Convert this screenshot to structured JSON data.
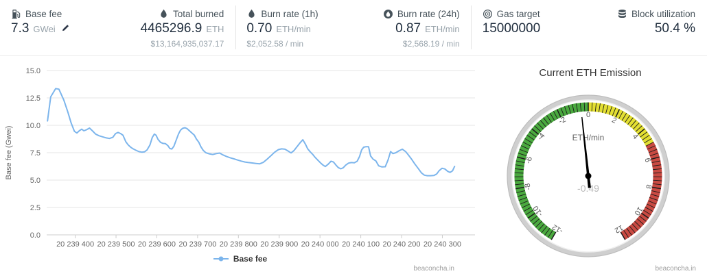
{
  "watermark": "beaconcha.in",
  "stats_bar": {
    "stats": [
      {
        "label": "Base fee",
        "value": "7.3",
        "unit": "GWei"
      },
      {
        "label": "Total burned",
        "value": "4465296.9",
        "unit": "ETH",
        "sub": "$13,164,935,037.17"
      },
      {
        "label": "Burn rate (1h)",
        "value": "0.70",
        "unit": "ETH/min",
        "sub": "$2,052.58 / min"
      },
      {
        "label": "Burn rate (24h)",
        "value": "0.87",
        "unit": "ETH/min",
        "sub": "$2,568.19 / min"
      },
      {
        "label": "Gas target",
        "value": "15000000"
      },
      {
        "label": "Block utilization",
        "value": "50.4 %"
      }
    ]
  },
  "chart_data": [
    {
      "type": "line",
      "title": "",
      "xlabel": "",
      "ylabel": "Base fee (Gwei)",
      "ylim": [
        0,
        15
      ],
      "yticks": [
        0,
        2.5,
        5,
        7.5,
        10,
        12.5,
        15
      ],
      "xlim": [
        20239330,
        20240380
      ],
      "xticks": [
        20239400,
        20239500,
        20239600,
        20239700,
        20239800,
        20239900,
        20240000,
        20240100,
        20240200,
        20240300
      ],
      "xtick_labels": [
        "20 239 400",
        "20 239 500",
        "20 239 600",
        "20 239 700",
        "20 239 800",
        "20 239 900",
        "20 240 000",
        "20 240 100",
        "20 240 200",
        "20 240 300"
      ],
      "grid": "horizontal",
      "legend_position": "bottom",
      "series": [
        {
          "name": "Base fee",
          "color": "#7cb5ec",
          "x": [
            20239332,
            20239340,
            20239352,
            20239360,
            20239372,
            20239382,
            20239390,
            20239398,
            20239404,
            20239410,
            20239416,
            20239421,
            20239428,
            20239435,
            20239442,
            20239450,
            20239458,
            20239467,
            20239476,
            20239484,
            20239492,
            20239499,
            20239505,
            20239511,
            20239517,
            20239524,
            20239530,
            20239536,
            20239542,
            20239549,
            20239556,
            20239563,
            20239570,
            20239576,
            20239583,
            20239589,
            20239594,
            20239598,
            20239603,
            20239609,
            20239615,
            20239621,
            20239627,
            20239632,
            20239637,
            20239642,
            20239648,
            20239653,
            20239658,
            20239663,
            20239669,
            20239674,
            20239680,
            20239686,
            20239692,
            20239697,
            20239703,
            20239708,
            20239714,
            20239720,
            20239728,
            20239737,
            20239746,
            20239754,
            20239762,
            20239771,
            20239780,
            20239789,
            20239798,
            20239807,
            20239816,
            20239825,
            20239834,
            20239843,
            20239852,
            20239861,
            20239869,
            20239879,
            20239889,
            20239898,
            20239906,
            20239914,
            20239922,
            20239929,
            20239936,
            20239943,
            20239951,
            20239958,
            20239964,
            20239970,
            20239976,
            20239982,
            20239988,
            20239994,
            20240001,
            20240007,
            20240013,
            20240020,
            20240027,
            20240033,
            20240039,
            20240045,
            20240051,
            20240057,
            20240063,
            20240070,
            20240077,
            20240084,
            20240091,
            20240097,
            20240102,
            20240107,
            20240113,
            20240119,
            20240124,
            20240130,
            20240137,
            20240144,
            20240152,
            20240160,
            20240167,
            20240173,
            20240179,
            20240186,
            20240194,
            20240202,
            20240210,
            20240217,
            20240225,
            20240233,
            20240241,
            20240249,
            20240256,
            20240263,
            20240271,
            20240279,
            20240286,
            20240292,
            20240299,
            20240306,
            20240313,
            20240319,
            20240325,
            20240330
          ],
          "y": [
            10.4,
            12.6,
            13.35,
            13.3,
            12.3,
            11.2,
            10.2,
            9.45,
            9.3,
            9.5,
            9.65,
            9.5,
            9.6,
            9.75,
            9.5,
            9.2,
            9.05,
            8.95,
            8.85,
            8.8,
            8.9,
            9.25,
            9.35,
            9.25,
            9.1,
            8.5,
            8.2,
            8.0,
            7.85,
            7.72,
            7.6,
            7.55,
            7.58,
            7.75,
            8.2,
            8.9,
            9.2,
            9.1,
            8.72,
            8.45,
            8.35,
            8.33,
            8.15,
            7.88,
            7.84,
            8.1,
            8.7,
            9.2,
            9.55,
            9.72,
            9.78,
            9.7,
            9.5,
            9.3,
            9.1,
            8.75,
            8.45,
            8.05,
            7.7,
            7.5,
            7.4,
            7.34,
            7.42,
            7.47,
            7.3,
            7.15,
            7.04,
            6.94,
            6.83,
            6.73,
            6.65,
            6.6,
            6.56,
            6.52,
            6.48,
            6.62,
            6.86,
            7.2,
            7.55,
            7.78,
            7.85,
            7.82,
            7.65,
            7.48,
            7.68,
            8.02,
            8.4,
            8.68,
            8.3,
            7.85,
            7.58,
            7.35,
            7.08,
            6.85,
            6.58,
            6.38,
            6.24,
            6.45,
            6.72,
            6.65,
            6.38,
            6.14,
            6.03,
            6.12,
            6.36,
            6.55,
            6.6,
            6.58,
            6.72,
            7.15,
            7.75,
            8.0,
            8.05,
            8.05,
            7.2,
            6.92,
            6.75,
            6.3,
            6.2,
            6.22,
            6.85,
            7.6,
            7.42,
            7.5,
            7.68,
            7.82,
            7.6,
            7.28,
            6.88,
            6.45,
            6.05,
            5.65,
            5.45,
            5.4,
            5.4,
            5.42,
            5.55,
            5.85,
            6.08,
            6.02,
            5.8,
            5.7,
            5.85,
            6.25
          ]
        }
      ]
    },
    {
      "type": "gauge",
      "title": "Current ETH Emission",
      "unit_label": "ETH/min",
      "value": -0.49,
      "value_label": "-0.49",
      "min": -12,
      "max": 12,
      "start_angle": -150,
      "end_angle": 150,
      "major_ticks": [
        -12,
        -10,
        -8,
        -6,
        -4,
        -2,
        0,
        2,
        4,
        6,
        8,
        10,
        12
      ],
      "minor_tick_step": 0.25,
      "needle_color": "#000000",
      "value_color": "#b9b9b9",
      "bands": [
        {
          "from": -12,
          "to": 0,
          "color": "#4aa93f"
        },
        {
          "from": 0,
          "to": 5,
          "color": "#e3df33"
        },
        {
          "from": 5,
          "to": 12,
          "color": "#c94a42"
        }
      ]
    }
  ]
}
